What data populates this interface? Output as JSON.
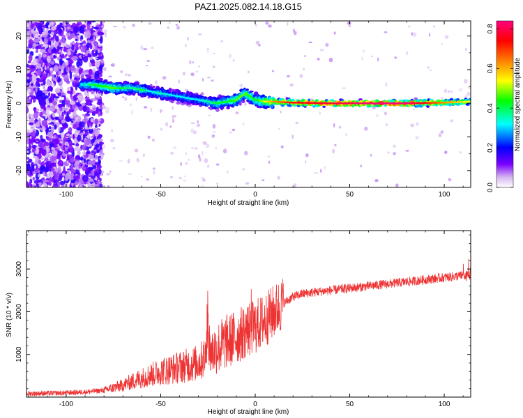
{
  "title": "PAZ1.2025.082.14.18.G15",
  "chart_data": [
    {
      "type": "heatmap",
      "title": "PAZ1.2025.082.14.18.G15",
      "xlabel": "Height of straight line (km)",
      "ylabel": "Frequency (Hz)",
      "xlim": [
        -121,
        114
      ],
      "ylim": [
        -25,
        24.5
      ],
      "x_ticks": [
        -100,
        -50,
        0,
        50,
        100
      ],
      "y_ticks": [
        -20,
        -10,
        0,
        10,
        20
      ],
      "colorbar": {
        "label": "Normalized spectral amplitude",
        "range": [
          0.0,
          0.84
        ],
        "ticks": [
          0.0,
          0.2,
          0.4,
          0.6,
          0.8
        ],
        "colors": [
          "#ffffff",
          "#d8b8f0",
          "#7b00ff",
          "#0000ff",
          "#00ffff",
          "#00ff00",
          "#ffff00",
          "#ff8000",
          "#ff0000",
          "#ff0080"
        ]
      },
      "ridge": {
        "x": [
          -100,
          -85,
          -75,
          -65,
          -60,
          -55,
          -50,
          -45,
          -40,
          -35,
          -30,
          -25,
          -20,
          -15,
          -10,
          -5,
          0,
          5,
          10,
          20,
          40,
          60,
          80,
          100,
          114
        ],
        "freq": [
          5.5,
          5.5,
          4.5,
          4.5,
          4.0,
          3.5,
          3.0,
          2.5,
          2.0,
          1.5,
          1.0,
          0.5,
          0.0,
          0.5,
          1.0,
          3.0,
          1.0,
          0.5,
          0.5,
          0.2,
          0.0,
          0.0,
          0.0,
          0.2,
          0.5
        ],
        "amplitude": [
          0.25,
          0.4,
          0.45,
          0.35,
          0.4,
          0.3,
          0.35,
          0.3,
          0.3,
          0.3,
          0.3,
          0.35,
          0.4,
          0.4,
          0.45,
          0.45,
          0.4,
          0.5,
          0.6,
          0.7,
          0.75,
          0.8,
          0.8,
          0.6,
          0.5
        ]
      }
    },
    {
      "type": "line",
      "xlabel": "Height of straight line (km)",
      "ylabel": "SNR (10 * v/v)",
      "xlim": [
        -121,
        114
      ],
      "ylim": [
        0,
        3900
      ],
      "x_ticks": [
        -100,
        -50,
        0,
        50,
        100
      ],
      "y_ticks": [
        1000,
        2000,
        3000
      ],
      "color": "#ee3333",
      "series": [
        {
          "name": "SNR",
          "x": [
            -121,
            -110,
            -100,
            -90,
            -80,
            -70,
            -60,
            -50,
            -40,
            -30,
            -25,
            -20,
            -15,
            -10,
            -5,
            0,
            5,
            10,
            15,
            20,
            25,
            30,
            40,
            50,
            60,
            70,
            80,
            90,
            100,
            110,
            114
          ],
          "y": [
            80,
            90,
            100,
            120,
            160,
            280,
            450,
            600,
            700,
            800,
            1000,
            1150,
            1300,
            1400,
            1550,
            1650,
            1800,
            2000,
            2200,
            2350,
            2420,
            2450,
            2500,
            2550,
            2600,
            2650,
            2700,
            2750,
            2800,
            2850,
            2850
          ]
        }
      ]
    }
  ]
}
